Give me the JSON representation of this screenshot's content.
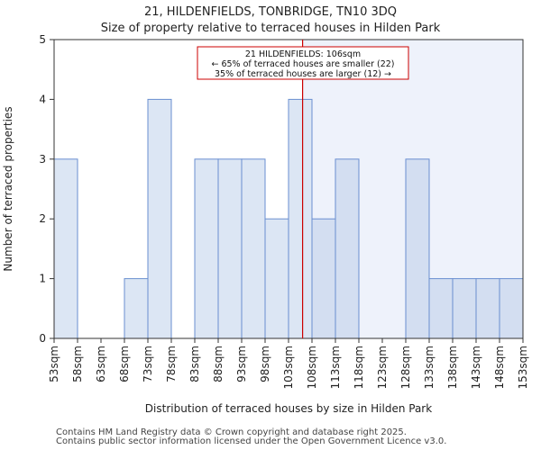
{
  "header": {
    "title": "21, HILDENFIELDS, TONBRIDGE, TN10 3DQ",
    "subtitle": "Size of property relative to terraced houses in Hilden Park"
  },
  "footer": {
    "line1": "Contains HM Land Registry data © Crown copyright and database right 2025.",
    "line2": "Contains public sector information licensed under the Open Government Licence v3.0."
  },
  "chart_data": {
    "type": "bar",
    "title": "21, HILDENFIELDS, TONBRIDGE, TN10 3DQ",
    "subtitle": "Size of property relative to terraced houses in Hilden Park",
    "xlabel": "Distribution of terraced houses by size in Hilden Park",
    "ylabel": "Number of terraced properties",
    "bin_edges": [
      53,
      58,
      63,
      68,
      73,
      78,
      83,
      88,
      93,
      98,
      103,
      108,
      113,
      118,
      123,
      128,
      133,
      138,
      143,
      148,
      153
    ],
    "x_tick_labels": [
      "53sqm",
      "58sqm",
      "63sqm",
      "68sqm",
      "73sqm",
      "78sqm",
      "83sqm",
      "88sqm",
      "93sqm",
      "98sqm",
      "103sqm",
      "108sqm",
      "113sqm",
      "118sqm",
      "123sqm",
      "128sqm",
      "133sqm",
      "138sqm",
      "143sqm",
      "148sqm",
      "153sqm"
    ],
    "values": [
      3,
      0,
      0,
      1,
      4,
      0,
      3,
      3,
      3,
      2,
      4,
      2,
      3,
      0,
      0,
      3,
      1,
      1,
      1,
      1
    ],
    "ylim": [
      0,
      5
    ],
    "y_ticks": [
      0,
      1,
      2,
      3,
      4,
      5
    ],
    "grid": false,
    "marker": {
      "value": 106,
      "color": "#cc0000",
      "annotation": [
        "21 HILDENFIELDS: 106sqm",
        "← 65% of terraced houses are smaller (22)",
        "35% of terraced houses are larger (12) →"
      ]
    },
    "colors": {
      "bar_fill_smaller": "#dce6f4",
      "bar_fill_larger": "#d3def1",
      "bar_stroke": "#6a8fd0",
      "shade_larger": "#eef2fb",
      "axis": "#333333"
    }
  }
}
